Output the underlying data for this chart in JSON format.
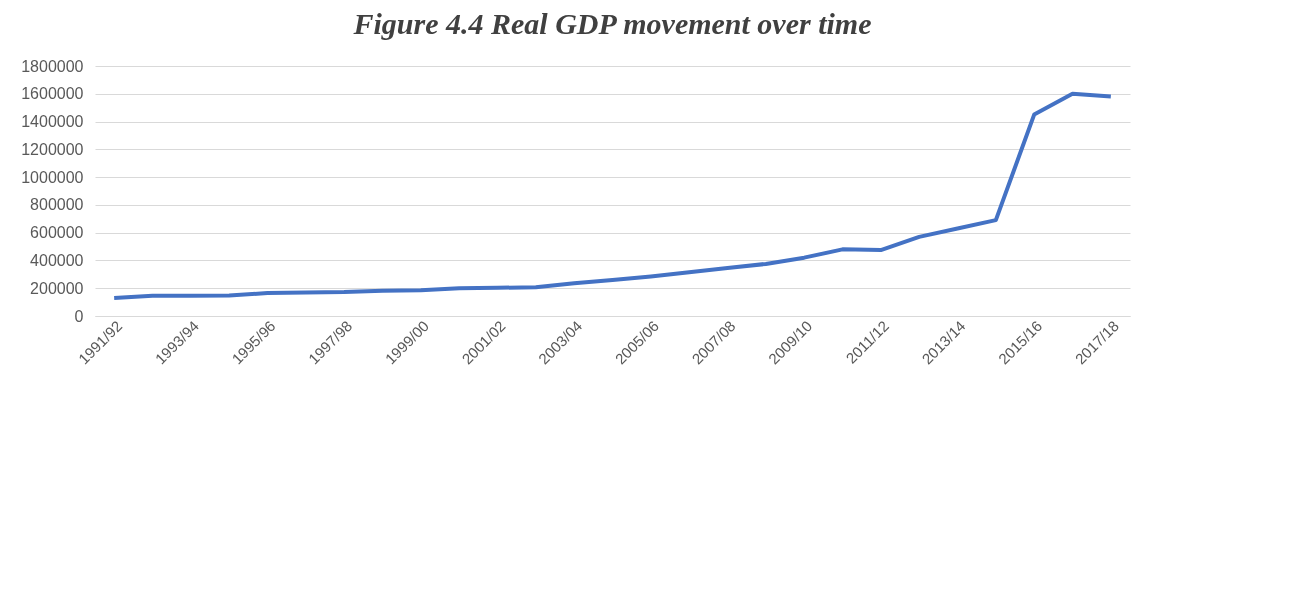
{
  "chart_data": {
    "type": "line",
    "title": "Figure 4.4 Real GDP movement over time",
    "categories": [
      "1991/92",
      null,
      "1993/94",
      null,
      "1995/96",
      null,
      "1997/98",
      null,
      "1999/00",
      null,
      "2001/02",
      null,
      "2003/04",
      null,
      "2005/06",
      null,
      "2007/08",
      null,
      "2009/10",
      null,
      "2011/12",
      null,
      "2013/14",
      null,
      "2015/16",
      null,
      "2017/18"
    ],
    "series": [
      {
        "color": "#4472c4",
        "values": [
          130000,
          145000,
          145000,
          148000,
          165000,
          170000,
          172000,
          182000,
          185000,
          200000,
          203000,
          207000,
          235000,
          260000,
          285000,
          315000,
          345000,
          375000,
          420000,
          480000,
          475000,
          570000,
          630000,
          690000,
          1450000,
          1600000,
          1580000
        ]
      }
    ],
    "ylim": [
      0,
      1800000
    ],
    "yticks": [
      0,
      200000,
      400000,
      600000,
      800000,
      1000000,
      1200000,
      1400000,
      1600000,
      1800000
    ],
    "grid": "y",
    "marker": "none",
    "line_style": "solid"
  }
}
